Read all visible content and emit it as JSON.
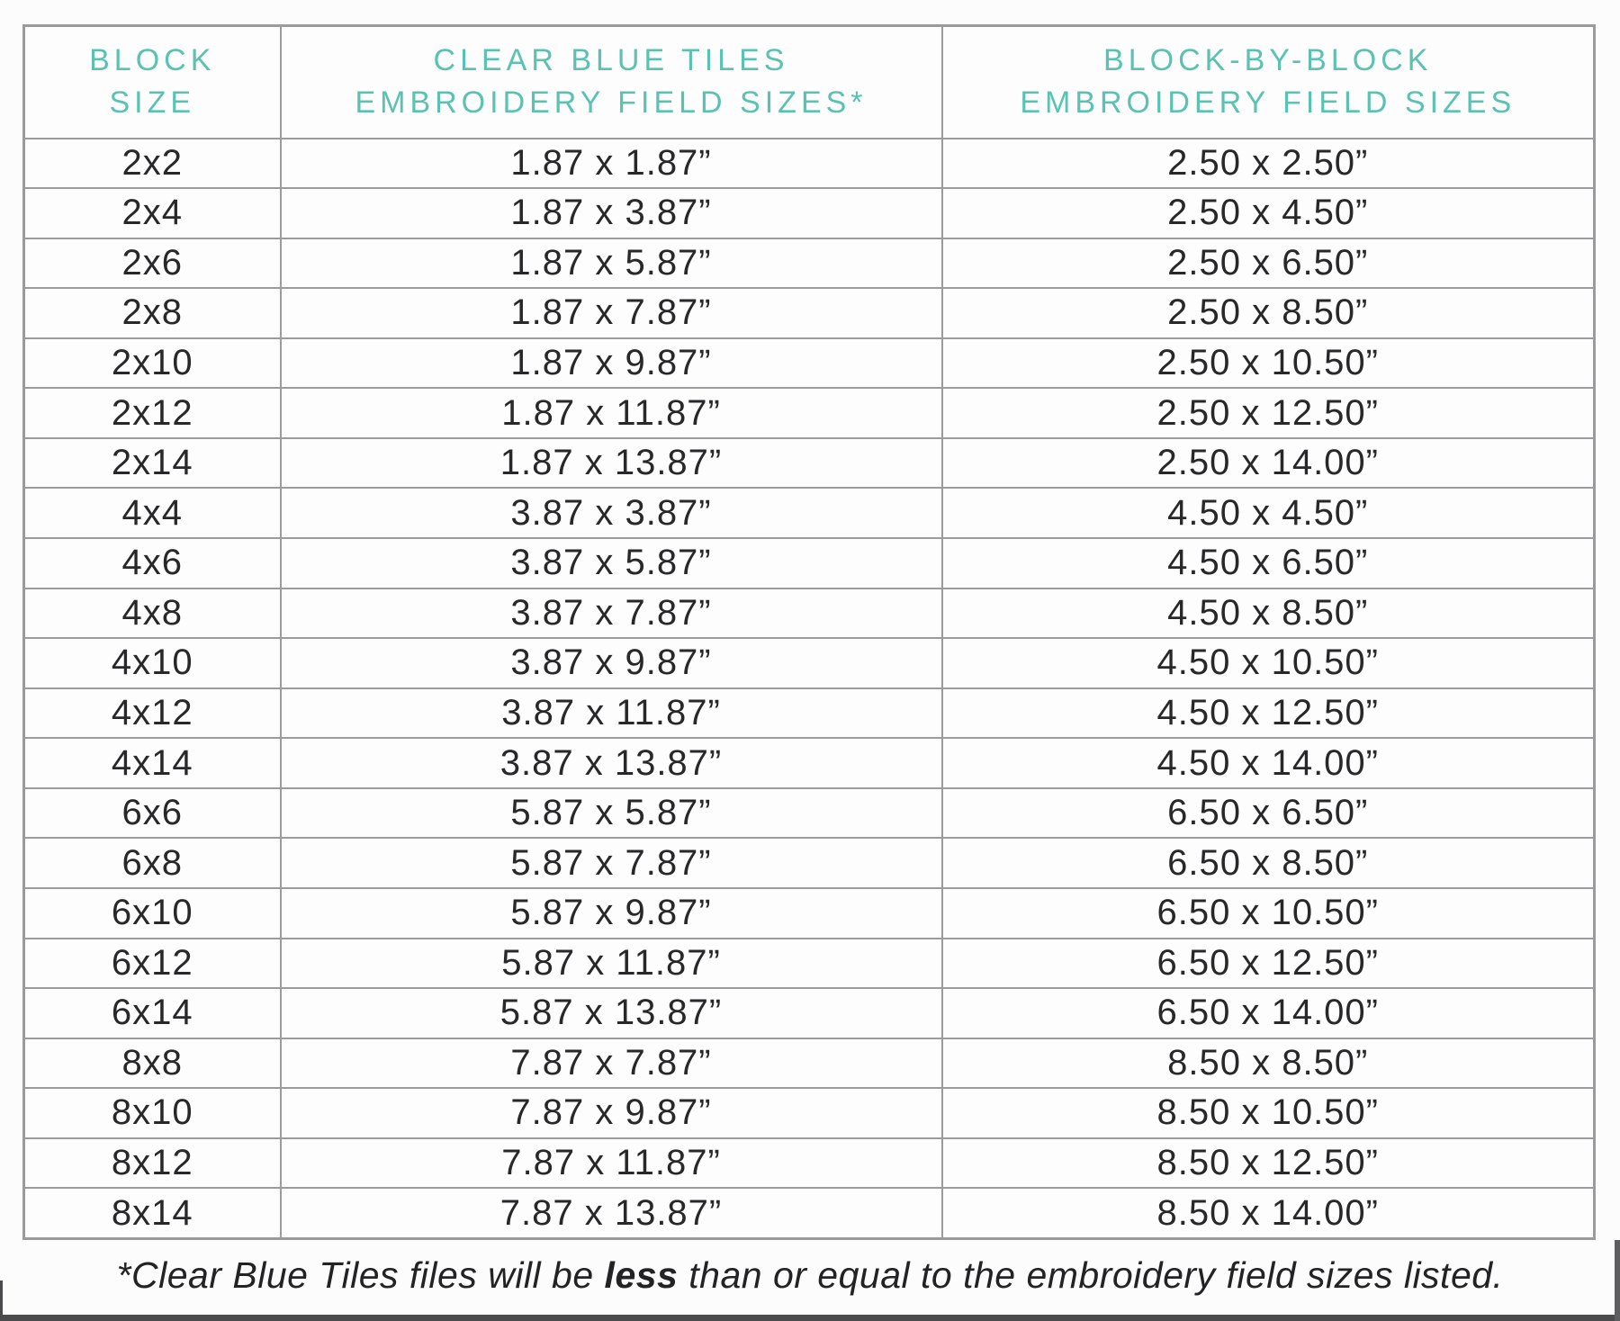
{
  "table": {
    "columns": [
      {
        "line1": "BLOCK",
        "line2": "SIZE"
      },
      {
        "line1": "CLEAR BLUE TILES",
        "line2": "EMBROIDERY FIELD SIZES*"
      },
      {
        "line1": "BLOCK-BY-BLOCK",
        "line2": "EMBROIDERY FIELD SIZES"
      }
    ],
    "rows": [
      [
        "2x2",
        "1.87 x 1.87”",
        "2.50 x 2.50”"
      ],
      [
        "2x4",
        "1.87 x 3.87”",
        "2.50 x 4.50”"
      ],
      [
        "2x6",
        "1.87 x 5.87”",
        "2.50 x 6.50”"
      ],
      [
        "2x8",
        "1.87 x 7.87”",
        "2.50 x 8.50”"
      ],
      [
        "2x10",
        "1.87 x 9.87”",
        "2.50 x 10.50”"
      ],
      [
        "2x12",
        "1.87 x 11.87”",
        "2.50 x 12.50”"
      ],
      [
        "2x14",
        "1.87 x 13.87”",
        "2.50 x 14.00”"
      ],
      [
        "4x4",
        "3.87 x 3.87”",
        "4.50 x 4.50”"
      ],
      [
        "4x6",
        "3.87 x 5.87”",
        "4.50 x 6.50”"
      ],
      [
        "4x8",
        "3.87 x 7.87”",
        "4.50 x 8.50”"
      ],
      [
        "4x10",
        "3.87 x 9.87”",
        "4.50 x 10.50”"
      ],
      [
        "4x12",
        "3.87 x 11.87”",
        "4.50 x 12.50”"
      ],
      [
        "4x14",
        "3.87 x 13.87”",
        "4.50 x 14.00”"
      ],
      [
        "6x6",
        "5.87 x 5.87”",
        "6.50 x 6.50”"
      ],
      [
        "6x8",
        "5.87 x 7.87”",
        "6.50 x 8.50”"
      ],
      [
        "6x10",
        "5.87 x 9.87”",
        "6.50 x 10.50”"
      ],
      [
        "6x12",
        "5.87 x 11.87”",
        "6.50 x 12.50”"
      ],
      [
        "6x14",
        "5.87 x 13.87”",
        "6.50 x 14.00”"
      ],
      [
        "8x8",
        "7.87 x 7.87”",
        "8.50 x 8.50”"
      ],
      [
        "8x10",
        "7.87 x 9.87”",
        "8.50 x 10.50”"
      ],
      [
        "8x12",
        "7.87 x 11.87”",
        "8.50 x 12.50”"
      ],
      [
        "8x14",
        "7.87 x 13.87”",
        "8.50 x 14.00”"
      ]
    ]
  },
  "footnote": {
    "prefix": "*Clear Blue Tiles files will be ",
    "emphasis": "less",
    "suffix": " than or equal to the embroidery field sizes listed."
  },
  "colors": {
    "header_teal": "#5bc2b2",
    "border_gray": "#9b9b9d",
    "text_dark": "#28282a",
    "page_edge_dark": "#4b4b4e"
  }
}
